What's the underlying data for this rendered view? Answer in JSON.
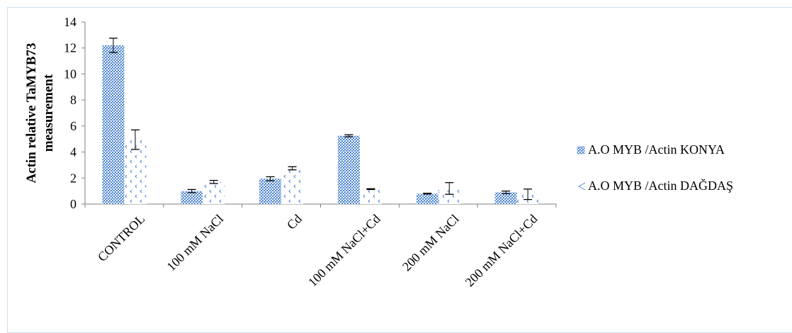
{
  "chart_data": {
    "type": "bar",
    "ylabel": "Actin relative TaMYB73 measurement",
    "xlabel": "",
    "title": "",
    "ylim": [
      0,
      14
    ],
    "yticks": [
      0,
      2,
      4,
      6,
      8,
      10,
      12,
      14
    ],
    "categories": [
      "CONTROL",
      "100 mM NaCl",
      "Cd",
      "100 mM NaCl+Cd",
      "200 mM NaCl",
      "200 mM NaCl+Cd"
    ],
    "series": [
      {
        "name": "A.O MYB /Actin KONYA",
        "values": [
          12.2,
          1.0,
          1.95,
          5.25,
          0.8,
          0.9
        ],
        "errors": [
          0.55,
          0.12,
          0.15,
          0.08,
          0.03,
          0.1
        ],
        "color": "#5b8fd6",
        "pattern": "dense-dots"
      },
      {
        "name": "A.O MYB /Actin DAĞDAŞ",
        "values": [
          4.95,
          1.7,
          2.75,
          1.15,
          1.2,
          0.75
        ],
        "errors": [
          0.75,
          0.12,
          0.12,
          0.03,
          0.45,
          0.4
        ],
        "color": "#5b8fd6",
        "pattern": "sparse-chevrons"
      }
    ],
    "legend_position": "right",
    "grid": false
  }
}
